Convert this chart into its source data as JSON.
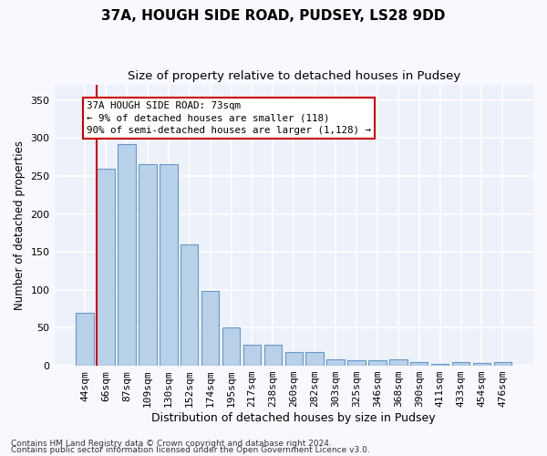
{
  "title1": "37A, HOUGH SIDE ROAD, PUDSEY, LS28 9DD",
  "title2": "Size of property relative to detached houses in Pudsey",
  "xlabel": "Distribution of detached houses by size in Pudsey",
  "ylabel": "Number of detached properties",
  "categories": [
    "44sqm",
    "66sqm",
    "87sqm",
    "109sqm",
    "130sqm",
    "152sqm",
    "174sqm",
    "195sqm",
    "217sqm",
    "238sqm",
    "260sqm",
    "282sqm",
    "303sqm",
    "325sqm",
    "346sqm",
    "368sqm",
    "390sqm",
    "411sqm",
    "433sqm",
    "454sqm",
    "476sqm"
  ],
  "values": [
    70,
    260,
    292,
    265,
    265,
    160,
    98,
    50,
    28,
    28,
    18,
    18,
    9,
    7,
    7,
    9,
    5,
    3,
    5,
    4,
    5
  ],
  "bar_color": "#b8d0e8",
  "bar_edge_color": "#6699cc",
  "highlight_color": "#cc0000",
  "annotation_line1": "37A HOUGH SIDE ROAD: 73sqm",
  "annotation_line2": "← 9% of detached houses are smaller (118)",
  "annotation_line3": "90% of semi-detached houses are larger (1,128) →",
  "annotation_box_edgecolor": "#cc0000",
  "footer1": "Contains HM Land Registry data © Crown copyright and database right 2024.",
  "footer2": "Contains public sector information licensed under the Open Government Licence v3.0.",
  "ylim": [
    0,
    370
  ],
  "yticks": [
    0,
    50,
    100,
    150,
    200,
    250,
    300,
    350
  ],
  "bg_color": "#edf1fa",
  "grid_color": "#ffffff",
  "fig_bg_color": "#f8f8ff",
  "title1_fontsize": 11,
  "title2_fontsize": 9.5,
  "ylabel_fontsize": 8.5,
  "xlabel_fontsize": 9,
  "tick_fontsize": 8,
  "footer_fontsize": 6.5
}
